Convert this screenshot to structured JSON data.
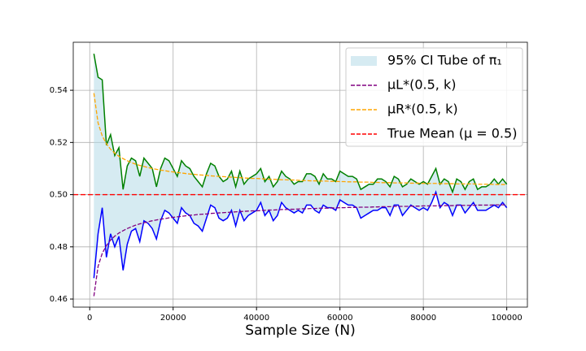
{
  "chart_data": {
    "type": "line",
    "xlabel": "Sample Size (N)",
    "x": [
      1000,
      2000,
      3000,
      4000,
      5000,
      6000,
      7000,
      8000,
      9000,
      10000,
      11000,
      12000,
      13000,
      14000,
      15000,
      16000,
      17000,
      18000,
      19000,
      20000,
      21000,
      22000,
      23000,
      24000,
      25000,
      26000,
      27000,
      28000,
      29000,
      30000,
      31000,
      32000,
      33000,
      34000,
      35000,
      36000,
      37000,
      38000,
      39000,
      40000,
      41000,
      42000,
      43000,
      44000,
      45000,
      46000,
      47000,
      48000,
      49000,
      50000,
      51000,
      52000,
      53000,
      54000,
      55000,
      56000,
      57000,
      58000,
      59000,
      60000,
      61000,
      62000,
      63000,
      64000,
      65000,
      66000,
      67000,
      68000,
      69000,
      70000,
      71000,
      72000,
      73000,
      74000,
      75000,
      76000,
      77000,
      78000,
      79000,
      80000,
      81000,
      82000,
      83000,
      84000,
      85000,
      86000,
      87000,
      88000,
      89000,
      90000,
      91000,
      92000,
      93000,
      94000,
      95000,
      96000,
      97000,
      98000,
      99000,
      100000
    ],
    "series": [
      {
        "name": "95% CI Tube of π₁",
        "type": "band",
        "color": "#add8e6",
        "upper_color": "green",
        "lower_color": "blue",
        "upper": [
          0.554,
          0.545,
          0.544,
          0.519,
          0.523,
          0.515,
          0.518,
          0.502,
          0.511,
          0.514,
          0.513,
          0.507,
          0.514,
          0.512,
          0.51,
          0.503,
          0.51,
          0.514,
          0.513,
          0.51,
          0.507,
          0.513,
          0.511,
          0.51,
          0.507,
          0.505,
          0.503,
          0.508,
          0.512,
          0.511,
          0.507,
          0.505,
          0.506,
          0.509,
          0.503,
          0.509,
          0.504,
          0.506,
          0.507,
          0.508,
          0.51,
          0.505,
          0.507,
          0.503,
          0.505,
          0.509,
          0.507,
          0.506,
          0.504,
          0.505,
          0.505,
          0.508,
          0.508,
          0.507,
          0.504,
          0.508,
          0.506,
          0.506,
          0.505,
          0.509,
          0.508,
          0.507,
          0.507,
          0.506,
          0.502,
          0.503,
          0.504,
          0.504,
          0.506,
          0.506,
          0.505,
          0.503,
          0.507,
          0.506,
          0.503,
          0.504,
          0.506,
          0.505,
          0.504,
          0.505,
          0.504,
          0.507,
          0.51,
          0.504,
          0.506,
          0.505,
          0.501,
          0.506,
          0.505,
          0.502,
          0.505,
          0.506,
          0.502,
          0.503,
          0.503,
          0.504,
          0.506,
          0.504,
          0.506,
          0.504
        ],
        "lower": [
          0.468,
          0.485,
          0.495,
          0.476,
          0.485,
          0.48,
          0.484,
          0.471,
          0.481,
          0.486,
          0.487,
          0.482,
          0.49,
          0.489,
          0.487,
          0.483,
          0.49,
          0.494,
          0.493,
          0.491,
          0.489,
          0.495,
          0.493,
          0.492,
          0.489,
          0.488,
          0.486,
          0.491,
          0.496,
          0.495,
          0.491,
          0.49,
          0.491,
          0.494,
          0.488,
          0.494,
          0.49,
          0.492,
          0.493,
          0.494,
          0.497,
          0.492,
          0.494,
          0.49,
          0.492,
          0.497,
          0.495,
          0.494,
          0.493,
          0.494,
          0.493,
          0.496,
          0.496,
          0.494,
          0.493,
          0.496,
          0.495,
          0.495,
          0.494,
          0.498,
          0.497,
          0.496,
          0.496,
          0.495,
          0.491,
          0.492,
          0.493,
          0.494,
          0.494,
          0.495,
          0.495,
          0.492,
          0.496,
          0.496,
          0.492,
          0.494,
          0.496,
          0.495,
          0.494,
          0.495,
          0.494,
          0.497,
          0.501,
          0.495,
          0.497,
          0.496,
          0.492,
          0.496,
          0.496,
          0.493,
          0.495,
          0.497,
          0.494,
          0.494,
          0.494,
          0.495,
          0.496,
          0.495,
          0.497,
          0.495
        ]
      },
      {
        "name": "μL*(0.5, k)",
        "type": "dashed",
        "color": "purple",
        "values": [
          0.4611,
          0.4725,
          0.4775,
          0.4805,
          0.4826,
          0.4841,
          0.4853,
          0.4862,
          0.487,
          0.4877,
          0.4883,
          0.4888,
          0.4892,
          0.4896,
          0.49,
          0.4903,
          0.4906,
          0.4908,
          0.4911,
          0.4913,
          0.4915,
          0.4917,
          0.4919,
          0.4921,
          0.4922,
          0.4924,
          0.4925,
          0.4926,
          0.4928,
          0.4929,
          0.493,
          0.4931,
          0.4932,
          0.4933,
          0.4934,
          0.4935,
          0.4936,
          0.4937,
          0.4938,
          0.4938,
          0.4939,
          0.494,
          0.4941,
          0.4941,
          0.4942,
          0.4943,
          0.4943,
          0.4944,
          0.4944,
          0.4945,
          0.4946,
          0.4946,
          0.4947,
          0.4947,
          0.4948,
          0.4948,
          0.4948,
          0.4949,
          0.4949,
          0.495,
          0.495,
          0.4951,
          0.4951,
          0.4951,
          0.4952,
          0.4952,
          0.4952,
          0.4953,
          0.4953,
          0.4954,
          0.4954,
          0.4954,
          0.4955,
          0.4955,
          0.4955,
          0.4955,
          0.4956,
          0.4956,
          0.4956,
          0.4957,
          0.4957,
          0.4957,
          0.4957,
          0.4958,
          0.4958,
          0.4958,
          0.4958,
          0.4959,
          0.4959,
          0.4959,
          0.4959,
          0.4959,
          0.496,
          0.496,
          0.496,
          0.496,
          0.4961,
          0.4961,
          0.4961,
          0.4961
        ]
      },
      {
        "name": "μR*(0.5, k)",
        "type": "dashed",
        "color": "orange",
        "values": [
          0.5389,
          0.5275,
          0.5225,
          0.5195,
          0.5174,
          0.5159,
          0.5147,
          0.5138,
          0.513,
          0.5123,
          0.5117,
          0.5112,
          0.5108,
          0.5104,
          0.51,
          0.5097,
          0.5094,
          0.5092,
          0.5089,
          0.5087,
          0.5085,
          0.5083,
          0.5081,
          0.5079,
          0.5078,
          0.5076,
          0.5075,
          0.5074,
          0.5072,
          0.5071,
          0.507,
          0.5069,
          0.5068,
          0.5067,
          0.5066,
          0.5065,
          0.5064,
          0.5063,
          0.5062,
          0.5062,
          0.5061,
          0.506,
          0.5059,
          0.5059,
          0.5058,
          0.5057,
          0.5057,
          0.5056,
          0.5056,
          0.5055,
          0.5054,
          0.5054,
          0.5053,
          0.5053,
          0.5052,
          0.5052,
          0.5052,
          0.5051,
          0.5051,
          0.505,
          0.505,
          0.5049,
          0.5049,
          0.5049,
          0.5048,
          0.5048,
          0.5048,
          0.5047,
          0.5047,
          0.5046,
          0.5046,
          0.5046,
          0.5045,
          0.5045,
          0.5045,
          0.5045,
          0.5044,
          0.5044,
          0.5044,
          0.5043,
          0.5043,
          0.5043,
          0.5043,
          0.5042,
          0.5042,
          0.5042,
          0.5042,
          0.5041,
          0.5041,
          0.5041,
          0.5041,
          0.5041,
          0.504,
          0.504,
          0.504,
          0.504,
          0.5039,
          0.5039,
          0.5039,
          0.5039
        ]
      },
      {
        "name": "True Mean (μ = 0.5)",
        "type": "hline",
        "color": "red",
        "value": 0.5
      }
    ],
    "xlim": [
      -3950,
      104950
    ],
    "xticks": [
      0,
      20000,
      40000,
      60000,
      80000,
      100000
    ],
    "ylim": [
      0.4569,
      0.5584
    ],
    "yticks": [
      0.46,
      0.48,
      {
        "value": 0.5,
        "label": "0.50"
      },
      0.52,
      0.54
    ],
    "grid": true,
    "legend": "upper right"
  }
}
